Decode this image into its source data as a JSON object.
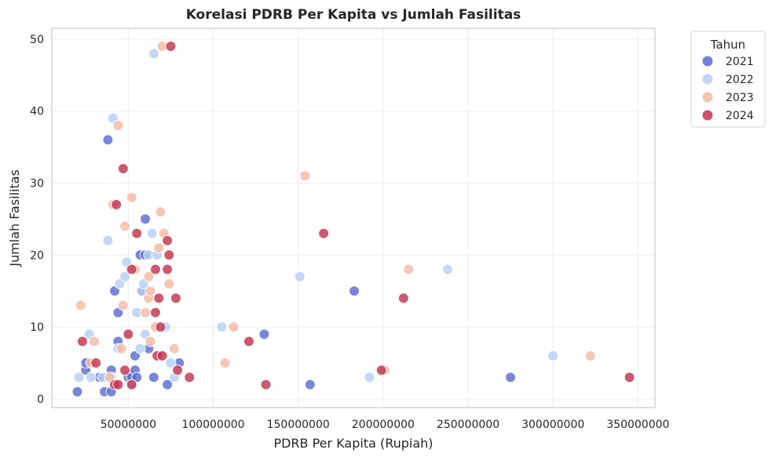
{
  "chart_data": {
    "type": "scatter",
    "title": "Korelasi PDRB Per Kapita vs Jumlah Fasilitas",
    "xlabel": "PDRB Per Kapita (Rupiah)",
    "ylabel": "Jumlah Fasilitas",
    "xlim": [
      5000000,
      360000000
    ],
    "ylim": [
      -1.2,
      51.5
    ],
    "xticks": [
      50000000,
      100000000,
      150000000,
      200000000,
      250000000,
      300000000,
      350000000
    ],
    "xtick_labels": [
      "50000000",
      "100000000",
      "150000000",
      "200000000",
      "250000000",
      "300000000",
      "350000000"
    ],
    "yticks": [
      0,
      10,
      20,
      30,
      40,
      50
    ],
    "ytick_labels": [
      "0",
      "10",
      "20",
      "30",
      "40",
      "50"
    ],
    "grid": true,
    "legend": {
      "title": "Tahun",
      "placement": "outside-top-right"
    },
    "series": [
      {
        "name": "2021",
        "color": "#5a6cd0",
        "points": [
          [
            20000000,
            1
          ],
          [
            25000000,
            4
          ],
          [
            25000000,
            5
          ],
          [
            33000000,
            3
          ],
          [
            36000000,
            1
          ],
          [
            38000000,
            36
          ],
          [
            40000000,
            4
          ],
          [
            40000000,
            1
          ],
          [
            42000000,
            15
          ],
          [
            44000000,
            12
          ],
          [
            44000000,
            8
          ],
          [
            50000000,
            3
          ],
          [
            52000000,
            3
          ],
          [
            54000000,
            4
          ],
          [
            54000000,
            6
          ],
          [
            55000000,
            3
          ],
          [
            57000000,
            20
          ],
          [
            58000000,
            15
          ],
          [
            60000000,
            25
          ],
          [
            60000000,
            20
          ],
          [
            62000000,
            7
          ],
          [
            65000000,
            3
          ],
          [
            73000000,
            2
          ],
          [
            80000000,
            5
          ],
          [
            130000000,
            9
          ],
          [
            157000000,
            2
          ],
          [
            183000000,
            15
          ],
          [
            275000000,
            3
          ]
        ]
      },
      {
        "name": "2022",
        "color": "#b6cff7",
        "points": [
          [
            21000000,
            3
          ],
          [
            27000000,
            9
          ],
          [
            28000000,
            3
          ],
          [
            35000000,
            3
          ],
          [
            38000000,
            22
          ],
          [
            40000000,
            3
          ],
          [
            41000000,
            39
          ],
          [
            44000000,
            7
          ],
          [
            45000000,
            16
          ],
          [
            48000000,
            17
          ],
          [
            49000000,
            19
          ],
          [
            52000000,
            2
          ],
          [
            55000000,
            12
          ],
          [
            57000000,
            7
          ],
          [
            58000000,
            15
          ],
          [
            59000000,
            16
          ],
          [
            60000000,
            9
          ],
          [
            62000000,
            20
          ],
          [
            64000000,
            23
          ],
          [
            65000000,
            48
          ],
          [
            67000000,
            20
          ],
          [
            72000000,
            10
          ],
          [
            75000000,
            5
          ],
          [
            77000000,
            3
          ],
          [
            105000000,
            10
          ],
          [
            151000000,
            17
          ],
          [
            192000000,
            3
          ],
          [
            238000000,
            18
          ],
          [
            300000000,
            6
          ]
        ]
      },
      {
        "name": "2023",
        "color": "#f6b9a1",
        "points": [
          [
            22000000,
            13
          ],
          [
            30000000,
            8
          ],
          [
            28000000,
            5
          ],
          [
            39000000,
            3
          ],
          [
            41000000,
            27
          ],
          [
            44000000,
            38
          ],
          [
            46000000,
            7
          ],
          [
            48000000,
            24
          ],
          [
            47000000,
            13
          ],
          [
            52000000,
            28
          ],
          [
            54000000,
            18
          ],
          [
            60000000,
            12
          ],
          [
            62000000,
            14
          ],
          [
            62000000,
            17
          ],
          [
            63000000,
            15
          ],
          [
            63000000,
            8
          ],
          [
            66000000,
            10
          ],
          [
            68000000,
            21
          ],
          [
            69000000,
            26
          ],
          [
            70000000,
            49
          ],
          [
            71000000,
            23
          ],
          [
            74000000,
            16
          ],
          [
            77000000,
            7
          ],
          [
            107000000,
            5
          ],
          [
            112000000,
            10
          ],
          [
            154000000,
            31
          ],
          [
            201000000,
            4
          ],
          [
            215000000,
            18
          ],
          [
            322000000,
            6
          ]
        ]
      },
      {
        "name": "2024",
        "color": "#c2344f",
        "points": [
          [
            23000000,
            8
          ],
          [
            31000000,
            5
          ],
          [
            42000000,
            2
          ],
          [
            43000000,
            27
          ],
          [
            44000000,
            2
          ],
          [
            47000000,
            32
          ],
          [
            48000000,
            4
          ],
          [
            50000000,
            9
          ],
          [
            52000000,
            18
          ],
          [
            52000000,
            2
          ],
          [
            55000000,
            23
          ],
          [
            66000000,
            12
          ],
          [
            66000000,
            18
          ],
          [
            67000000,
            6
          ],
          [
            68000000,
            14
          ],
          [
            69000000,
            10
          ],
          [
            70000000,
            6
          ],
          [
            73000000,
            22
          ],
          [
            73000000,
            18
          ],
          [
            74000000,
            20
          ],
          [
            75000000,
            49
          ],
          [
            78000000,
            14
          ],
          [
            79000000,
            4
          ],
          [
            86000000,
            3
          ],
          [
            121000000,
            8
          ],
          [
            131000000,
            2
          ],
          [
            165000000,
            23
          ],
          [
            199000000,
            4
          ],
          [
            212000000,
            14
          ],
          [
            345000000,
            3
          ]
        ]
      }
    ]
  }
}
